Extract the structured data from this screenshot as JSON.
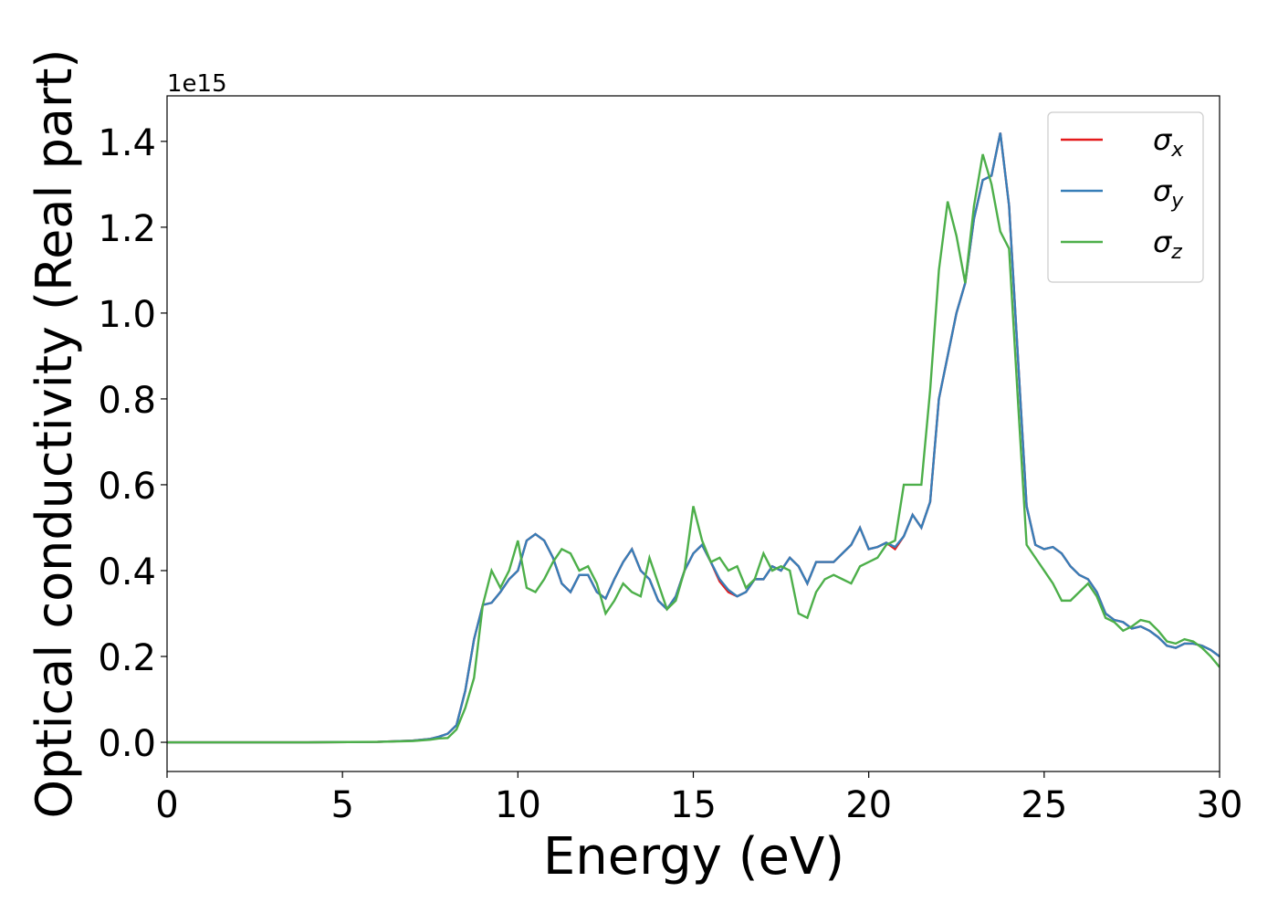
{
  "chart_data": {
    "type": "line",
    "x_label": "Energy (eV)",
    "y_label": "Optical conductivity (Real part)",
    "y_offset_label": "1e15",
    "xlim": [
      0,
      30
    ],
    "xticks": [
      0,
      5,
      10,
      15,
      20,
      25,
      30
    ],
    "ylim": [
      -0.068,
      1.506
    ],
    "yticks": [
      {
        "value": 0,
        "label": "0.0"
      },
      0.2,
      0.4,
      0.6,
      0.8,
      {
        "value": 1,
        "label": "1.0"
      },
      1.2,
      1.4
    ],
    "legend": "upper right",
    "x": [
      0,
      2,
      4,
      6,
      7,
      7.5,
      7.75,
      8,
      8.25,
      8.5,
      8.75,
      9,
      9.25,
      9.5,
      9.75,
      10,
      10.25,
      10.5,
      10.75,
      11,
      11.25,
      11.5,
      11.75,
      12,
      12.25,
      12.5,
      12.75,
      13,
      13.25,
      13.5,
      13.75,
      14,
      14.25,
      14.5,
      14.75,
      15,
      15.25,
      15.5,
      15.75,
      16,
      16.25,
      16.5,
      16.75,
      17,
      17.25,
      17.5,
      17.75,
      18,
      18.25,
      18.5,
      18.75,
      19,
      19.25,
      19.5,
      19.75,
      20,
      20.25,
      20.5,
      20.75,
      21,
      21.25,
      21.5,
      21.75,
      22,
      22.25,
      22.5,
      22.75,
      23,
      23.25,
      23.5,
      23.75,
      24,
      24.25,
      24.5,
      24.75,
      25,
      25.25,
      25.5,
      25.75,
      26,
      26.25,
      26.5,
      26.75,
      27,
      27.25,
      27.5,
      27.75,
      28,
      28.25,
      28.5,
      28.75,
      29,
      29.25,
      29.5,
      29.75,
      30
    ],
    "series": [
      {
        "name": "σx",
        "color": "#e41a1c",
        "values": [
          0,
          0,
          0,
          0.001,
          0.004,
          0.008,
          0.013,
          0.02,
          0.04,
          0.12,
          0.24,
          0.32,
          0.325,
          0.35,
          0.38,
          0.4,
          0.47,
          0.485,
          0.47,
          0.43,
          0.37,
          0.35,
          0.39,
          0.39,
          0.35,
          0.335,
          0.38,
          0.42,
          0.45,
          0.4,
          0.38,
          0.33,
          0.31,
          0.34,
          0.4,
          0.44,
          0.46,
          0.42,
          0.375,
          0.35,
          0.34,
          0.35,
          0.38,
          0.38,
          0.41,
          0.4,
          0.43,
          0.41,
          0.37,
          0.42,
          0.42,
          0.42,
          0.44,
          0.46,
          0.5,
          0.45,
          0.455,
          0.465,
          0.45,
          0.48,
          0.53,
          0.5,
          0.56,
          0.8,
          0.9,
          1.0,
          1.07,
          1.22,
          1.31,
          1.32,
          1.42,
          1.25,
          0.9,
          0.55,
          0.46,
          0.45,
          0.455,
          0.44,
          0.41,
          0.39,
          0.38,
          0.35,
          0.3,
          0.285,
          0.28,
          0.265,
          0.27,
          0.26,
          0.245,
          0.225,
          0.22,
          0.23,
          0.23,
          0.225,
          0.215,
          0.2
        ]
      },
      {
        "name": "σy",
        "color": "#377eb8",
        "values": [
          0,
          0,
          0,
          0.001,
          0.004,
          0.008,
          0.013,
          0.02,
          0.04,
          0.12,
          0.24,
          0.32,
          0.325,
          0.35,
          0.38,
          0.4,
          0.47,
          0.485,
          0.47,
          0.43,
          0.37,
          0.35,
          0.39,
          0.39,
          0.35,
          0.335,
          0.38,
          0.42,
          0.45,
          0.4,
          0.38,
          0.33,
          0.31,
          0.34,
          0.4,
          0.44,
          0.46,
          0.42,
          0.38,
          0.355,
          0.34,
          0.35,
          0.38,
          0.38,
          0.41,
          0.4,
          0.43,
          0.41,
          0.37,
          0.42,
          0.42,
          0.42,
          0.44,
          0.46,
          0.5,
          0.45,
          0.455,
          0.465,
          0.455,
          0.48,
          0.53,
          0.5,
          0.56,
          0.8,
          0.9,
          1.0,
          1.07,
          1.22,
          1.31,
          1.32,
          1.42,
          1.25,
          0.9,
          0.55,
          0.46,
          0.45,
          0.455,
          0.44,
          0.41,
          0.39,
          0.38,
          0.35,
          0.3,
          0.285,
          0.28,
          0.265,
          0.27,
          0.26,
          0.245,
          0.225,
          0.22,
          0.23,
          0.23,
          0.225,
          0.215,
          0.2
        ]
      },
      {
        "name": "σz",
        "color": "#4daf4a",
        "values": [
          0,
          0,
          0,
          0.001,
          0.003,
          0.006,
          0.009,
          0.01,
          0.03,
          0.08,
          0.15,
          0.32,
          0.4,
          0.36,
          0.4,
          0.47,
          0.36,
          0.35,
          0.38,
          0.42,
          0.45,
          0.44,
          0.4,
          0.41,
          0.37,
          0.3,
          0.33,
          0.37,
          0.35,
          0.34,
          0.43,
          0.37,
          0.31,
          0.33,
          0.4,
          0.55,
          0.47,
          0.42,
          0.43,
          0.4,
          0.41,
          0.36,
          0.38,
          0.44,
          0.4,
          0.41,
          0.4,
          0.3,
          0.29,
          0.35,
          0.38,
          0.39,
          0.38,
          0.37,
          0.41,
          0.42,
          0.43,
          0.46,
          0.47,
          0.6,
          0.6,
          0.6,
          0.82,
          1.1,
          1.26,
          1.18,
          1.07,
          1.25,
          1.37,
          1.3,
          1.19,
          1.15,
          0.8,
          0.46,
          0.43,
          0.4,
          0.37,
          0.33,
          0.33,
          0.35,
          0.37,
          0.34,
          0.29,
          0.28,
          0.26,
          0.27,
          0.285,
          0.28,
          0.26,
          0.235,
          0.23,
          0.24,
          0.235,
          0.22,
          0.2,
          0.175
        ]
      }
    ]
  }
}
